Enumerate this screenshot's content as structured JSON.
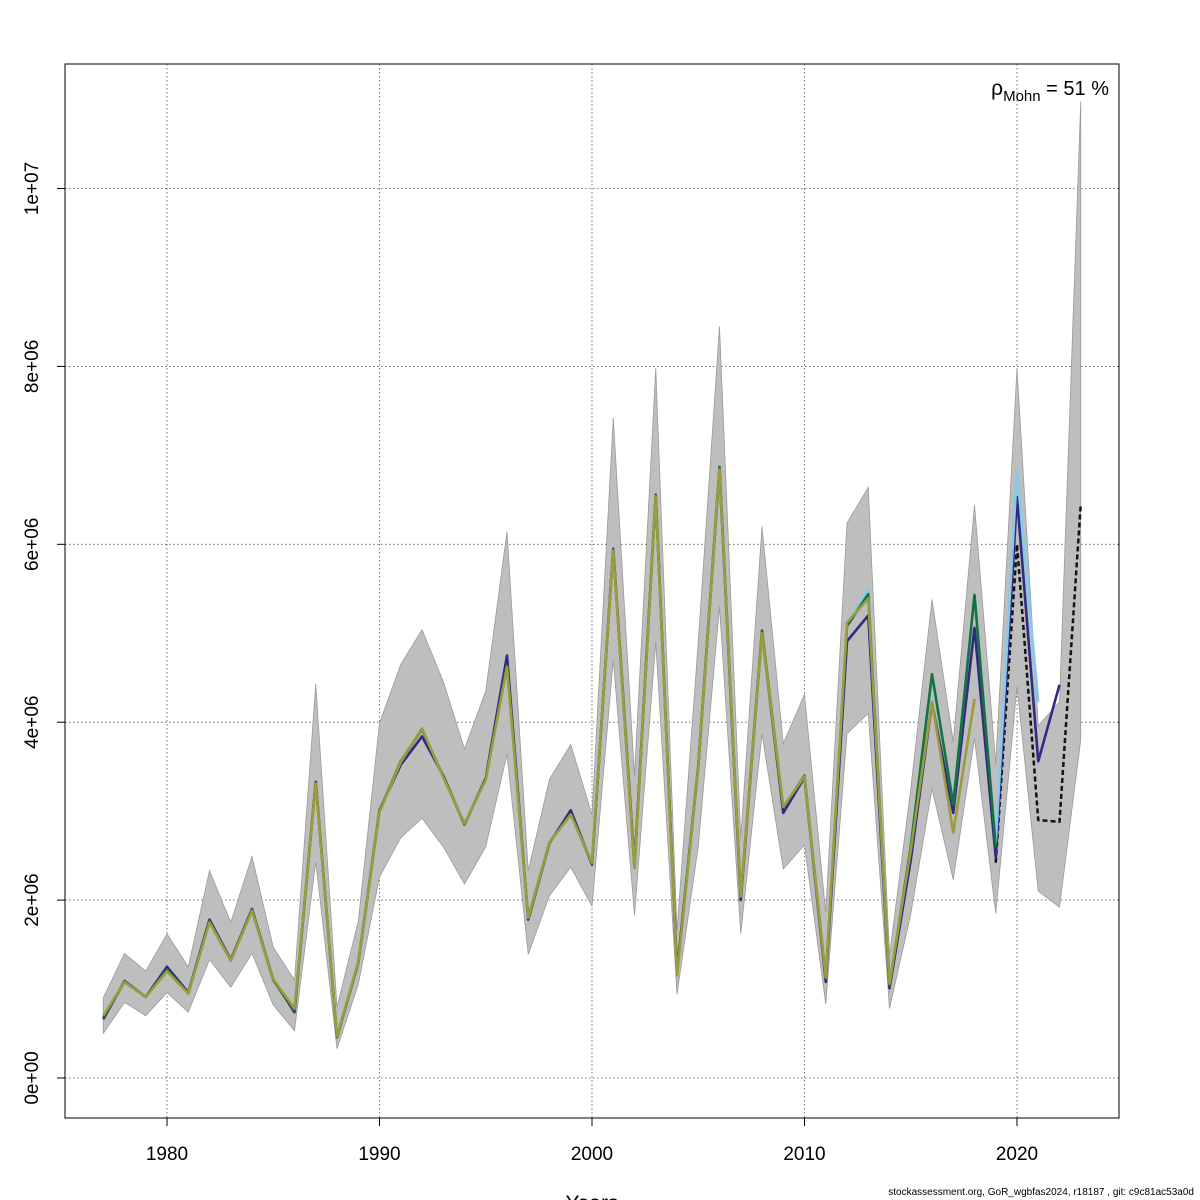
{
  "chart_data": {
    "type": "line",
    "title": "",
    "xlabel": "Years",
    "ylabel": "",
    "xlim": [
      1975.2,
      2024.8
    ],
    "ylim": [
      -450000,
      11400000
    ],
    "x_ticks": [
      1980,
      1990,
      2000,
      2010,
      2020
    ],
    "y_ticks": [
      0,
      2000000,
      4000000,
      6000000,
      8000000,
      10000000
    ],
    "y_tick_labels": [
      "0e+00",
      "2e+06",
      "4e+06",
      "6e+06",
      "8e+06",
      "1e+07"
    ],
    "grid": true,
    "annotation": {
      "prefix": "ρ",
      "subscript": "Mohn",
      "text": " = 51 %"
    },
    "confidence_band": {
      "color": "#bebebe",
      "x": [
        1977,
        1978,
        1979,
        1980,
        1981,
        1982,
        1983,
        1984,
        1985,
        1986,
        1987,
        1988,
        1989,
        1990,
        1991,
        1992,
        1993,
        1994,
        1995,
        1996,
        1997,
        1998,
        1999,
        2000,
        2001,
        2002,
        2003,
        2004,
        2005,
        2006,
        2007,
        2008,
        2009,
        2010,
        2011,
        2012,
        2013,
        2014,
        2015,
        2016,
        2017,
        2018,
        2019,
        2020,
        2021,
        2022,
        2023
      ],
      "lower": [
        500000,
        850000,
        700000,
        960000,
        740000,
        1330000,
        1020000,
        1400000,
        820000,
        530000,
        2430000,
        330000,
        1050000,
        2260000,
        2700000,
        2920000,
        2600000,
        2180000,
        2600000,
        3640000,
        1390000,
        2050000,
        2370000,
        1930000,
        4700000,
        1830000,
        4900000,
        940000,
        2600000,
        5300000,
        1620000,
        3870000,
        2350000,
        2620000,
        830000,
        3870000,
        4100000,
        780000,
        1840000,
        3250000,
        2230000,
        3820000,
        1850000,
        4400000,
        2100000,
        1920000,
        3800000
      ],
      "upper": [
        900000,
        1400000,
        1200000,
        1620000,
        1250000,
        2330000,
        1750000,
        2490000,
        1470000,
        1100000,
        4430000,
        800000,
        1760000,
        3990000,
        4650000,
        5040000,
        4460000,
        3700000,
        4350000,
        6140000,
        2330000,
        3360000,
        3750000,
        2960000,
        7420000,
        3400000,
        7980000,
        1660000,
        4900000,
        8450000,
        2700000,
        6200000,
        3760000,
        4310000,
        1860000,
        6240000,
        6640000,
        1380000,
        3250000,
        5380000,
        3780000,
        6440000,
        3530000,
        7980000,
        3960000,
        4230000,
        10980000
      ]
    },
    "series": [
      {
        "color": "#111111",
        "dashed": true,
        "x": [
          2019,
          2020,
          2021,
          2022,
          2023
        ],
        "values": [
          2420000,
          6000000,
          2900000,
          2880000,
          6450000
        ]
      },
      {
        "color": "#312a82",
        "dashed": false,
        "x": [
          1977,
          1978,
          1979,
          1980,
          1981,
          1982,
          1983,
          1984,
          1985,
          1986,
          1987,
          1988,
          1989,
          1990,
          1991,
          1992,
          1993,
          1994,
          1995,
          1996,
          1997,
          1998,
          1999,
          2000,
          2001,
          2002,
          2003,
          2004,
          2005,
          2006,
          2007,
          2008,
          2009,
          2010,
          2011,
          2012,
          2013,
          2014,
          2015,
          2016,
          2017,
          2018,
          2019,
          2020,
          2021,
          2022
        ],
        "values": [
          660000,
          1090000,
          910000,
          1250000,
          960000,
          1780000,
          1330000,
          1900000,
          1110000,
          740000,
          3330000,
          460000,
          1290000,
          3010000,
          3520000,
          3840000,
          3400000,
          2850000,
          3370000,
          4750000,
          1780000,
          2640000,
          3010000,
          2400000,
          5950000,
          2400000,
          6550000,
          1200000,
          3500000,
          6830000,
          2000000,
          5010000,
          2980000,
          3380000,
          1080000,
          4910000,
          5200000,
          1010000,
          2450000,
          4220000,
          2980000,
          5060000,
          2480000,
          6530000,
          3560000,
          4420000
        ]
      },
      {
        "color": "#86c9ea",
        "dashed": false,
        "x": [
          2012,
          2013,
          2014,
          2015,
          2016,
          2017,
          2018,
          2019,
          2020,
          2021
        ],
        "values": [
          5100000,
          5490000,
          1060000,
          2600000,
          4500000,
          3080000,
          5440000,
          2650000,
          6830000,
          4230000
        ]
      },
      {
        "color": "#13723d",
        "dashed": false,
        "x": [
          1977,
          1978,
          1979,
          1980,
          1981,
          1982,
          1983,
          1984,
          1985,
          1986,
          1987,
          1988,
          1989,
          1990,
          1991,
          1992,
          1993,
          1994,
          1995,
          1996,
          1997,
          1998,
          1999,
          2000,
          2001,
          2002,
          2003,
          2004,
          2005,
          2006,
          2007,
          2008,
          2009,
          2010,
          2011,
          2012,
          2013,
          2014,
          2015,
          2016,
          2017,
          2018,
          2019
        ],
        "values": [
          680000,
          1080000,
          910000,
          1220000,
          950000,
          1760000,
          1320000,
          1890000,
          1100000,
          760000,
          3320000,
          460000,
          1300000,
          3000000,
          3560000,
          3920000,
          3390000,
          2850000,
          3360000,
          4640000,
          1800000,
          2650000,
          2970000,
          2410000,
          5940000,
          2360000,
          6560000,
          1170000,
          3500000,
          6870000,
          2040000,
          5030000,
          3040000,
          3400000,
          1120000,
          5080000,
          5440000,
          1040000,
          2600000,
          4540000,
          3080000,
          5430000,
          2600000
        ]
      },
      {
        "color": "#9c9c3c",
        "dashed": false,
        "x": [
          1977,
          1978,
          1979,
          1980,
          1981,
          1982,
          1983,
          1984,
          1985,
          1986,
          1987,
          1988,
          1989,
          1990,
          1991,
          1992,
          1993,
          1994,
          1995,
          1996,
          1997,
          1998,
          1999,
          2000,
          2001,
          2002,
          2003,
          2004,
          2005,
          2006,
          2007,
          2008,
          2009,
          2010,
          2011,
          2012,
          2013,
          2014,
          2015,
          2016,
          2017,
          2018
        ],
        "values": [
          700000,
          1080000,
          910000,
          1200000,
          950000,
          1750000,
          1320000,
          1880000,
          1110000,
          780000,
          3310000,
          470000,
          1300000,
          2990000,
          3550000,
          3930000,
          3380000,
          2860000,
          3350000,
          4620000,
          1800000,
          2650000,
          2960000,
          2420000,
          5930000,
          2360000,
          6540000,
          1150000,
          3490000,
          6840000,
          2040000,
          5000000,
          3050000,
          3390000,
          1130000,
          5120000,
          5390000,
          1060000,
          2560000,
          4230000,
          2760000,
          4260000
        ]
      }
    ]
  },
  "footer": "stockassessment.org, GoR_wgbfas2024, r18187 , git: c9c81ac53a0d"
}
